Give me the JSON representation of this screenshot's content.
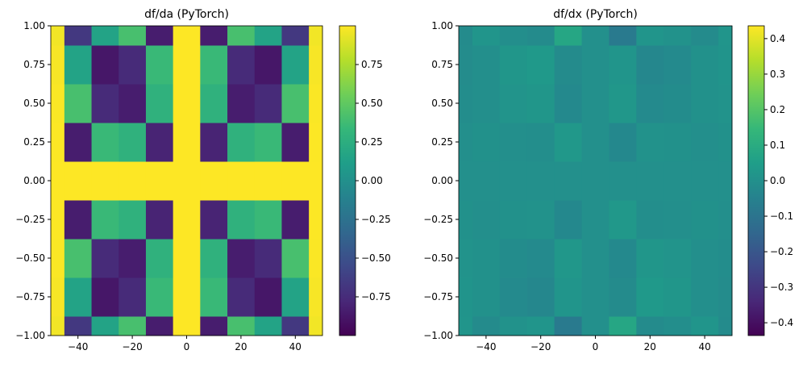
{
  "chart_data": [
    {
      "type": "heatmap",
      "title": "df/da (PyTorch)",
      "x": [
        -50,
        -40,
        -30,
        -20,
        -10,
        0,
        10,
        20,
        30,
        40,
        50
      ],
      "y": [
        -1,
        -0.75,
        -0.5,
        -0.25,
        0,
        0.25,
        0.5,
        0.75,
        1
      ],
      "z": [
        [
          0.965,
          -0.667,
          0.154,
          0.408,
          -0.839,
          1,
          -0.839,
          0.408,
          0.154,
          -0.667,
          0.965
        ],
        [
          0.98,
          0.154,
          -0.874,
          -0.76,
          0.347,
          1,
          0.347,
          -0.76,
          -0.874,
          0.154,
          0.98
        ],
        [
          0.991,
          0.408,
          -0.76,
          -0.839,
          0.284,
          1,
          0.284,
          -0.839,
          -0.76,
          0.408,
          0.991
        ],
        [
          0.998,
          -0.839,
          0.347,
          0.284,
          -0.801,
          1,
          -0.801,
          0.284,
          0.347,
          -0.839,
          0.998
        ],
        [
          1,
          1,
          1,
          1,
          1,
          1,
          1,
          1,
          1,
          1,
          1
        ],
        [
          0.998,
          -0.839,
          0.347,
          0.284,
          -0.801,
          1,
          -0.801,
          0.284,
          0.347,
          -0.839,
          0.998
        ],
        [
          0.991,
          0.408,
          -0.76,
          -0.839,
          0.284,
          1,
          0.284,
          -0.839,
          -0.76,
          0.408,
          0.991
        ],
        [
          0.98,
          0.154,
          -0.874,
          -0.76,
          0.347,
          1,
          0.347,
          -0.76,
          -0.874,
          0.154,
          0.98
        ],
        [
          0.965,
          -0.667,
          0.154,
          0.408,
          -0.839,
          1,
          -0.839,
          0.408,
          0.154,
          -0.667,
          0.965
        ]
      ],
      "xlim": [
        -50,
        50
      ],
      "ylim": [
        -1,
        1
      ],
      "xticks": [
        {
          "value": -40,
          "label": "−40"
        },
        {
          "value": -20,
          "label": "−20"
        },
        0,
        20,
        40
      ],
      "yticks": [
        {
          "value": -1,
          "label": "−1.00"
        },
        {
          "value": -0.75,
          "label": "−0.75"
        },
        {
          "value": -0.5,
          "label": "−0.50"
        },
        {
          "value": -0.25,
          "label": "−0.25"
        },
        {
          "value": 0,
          "label": "0.00"
        },
        0.25,
        {
          "value": 0.5,
          "label": "0.50"
        },
        0.75,
        {
          "value": 1,
          "label": "1.00"
        }
      ],
      "colormap": "viridis",
      "zlim": [
        -1,
        1
      ],
      "zticks": [
        {
          "value": -0.75,
          "label": "−0.75"
        },
        {
          "value": -0.5,
          "label": "−0.50"
        },
        {
          "value": -0.25,
          "label": "−0.25"
        },
        {
          "value": 0,
          "label": "0.00"
        },
        0.25,
        {
          "value": 0.5,
          "label": "0.50"
        },
        0.75
      ]
    },
    {
      "type": "heatmap",
      "title": "df/dx (PyTorch)",
      "x": [
        -50,
        -40,
        -30,
        -20,
        -10,
        0,
        10,
        20,
        30,
        40,
        50
      ],
      "y": [
        -1,
        -0.75,
        -0.5,
        -0.25,
        0,
        0.25,
        0.5,
        0.75,
        1
      ],
      "z": [
        [
          0.019,
          -0.017,
          0.006,
          0.018,
          -0.078,
          0,
          0.078,
          -0.018,
          -0.006,
          0.017,
          -0.019
        ],
        [
          0.015,
          0.004,
          -0.021,
          -0.03,
          0.017,
          0,
          -0.017,
          0.03,
          0.021,
          -0.004,
          -0.015
        ],
        [
          0.01,
          0.005,
          -0.013,
          -0.02,
          0.024,
          0,
          -0.024,
          0.02,
          0.013,
          -0.005,
          -0.01
        ],
        [
          0.005,
          -0.005,
          0.002,
          0.006,
          -0.026,
          0,
          0.026,
          -0.006,
          -0.002,
          0.005,
          -0.005
        ],
        [
          0,
          0,
          0,
          0,
          0,
          0,
          0,
          0,
          0,
          0,
          0
        ],
        [
          -0.005,
          0.005,
          -0.002,
          -0.006,
          0.026,
          0,
          -0.026,
          0.006,
          0.002,
          -0.005,
          0.005
        ],
        [
          -0.01,
          -0.005,
          0.013,
          0.02,
          -0.024,
          0,
          0.024,
          -0.02,
          -0.013,
          0.005,
          0.01
        ],
        [
          -0.015,
          -0.004,
          0.021,
          0.03,
          -0.017,
          0,
          0.017,
          -0.03,
          -0.021,
          0.004,
          0.015
        ],
        [
          -0.019,
          0.017,
          -0.006,
          -0.018,
          0.078,
          0,
          -0.078,
          0.018,
          0.006,
          -0.017,
          0.019
        ]
      ],
      "xlim": [
        -50,
        50
      ],
      "ylim": [
        -1,
        1
      ],
      "xticks": [
        {
          "value": -40,
          "label": "−40"
        },
        {
          "value": -20,
          "label": "−20"
        },
        0,
        20,
        40
      ],
      "yticks": [
        {
          "value": -1,
          "label": "−1.00"
        },
        {
          "value": -0.75,
          "label": "−0.75"
        },
        {
          "value": -0.5,
          "label": "−0.50"
        },
        {
          "value": -0.25,
          "label": "−0.25"
        },
        {
          "value": 0,
          "label": "0.00"
        },
        0.25,
        {
          "value": 0.5,
          "label": "0.50"
        },
        0.75,
        {
          "value": 1,
          "label": "1.00"
        }
      ],
      "colormap": "viridis",
      "zlim": [
        -0.436,
        0.436
      ],
      "zticks": [
        {
          "value": -0.4,
          "label": "−0.4"
        },
        {
          "value": -0.3,
          "label": "−0.3"
        },
        {
          "value": -0.2,
          "label": "−0.2"
        },
        {
          "value": -0.1,
          "label": "−0.1"
        },
        {
          "value": 0,
          "label": "0.0"
        },
        0.1,
        0.2,
        0.3,
        0.4
      ]
    }
  ]
}
